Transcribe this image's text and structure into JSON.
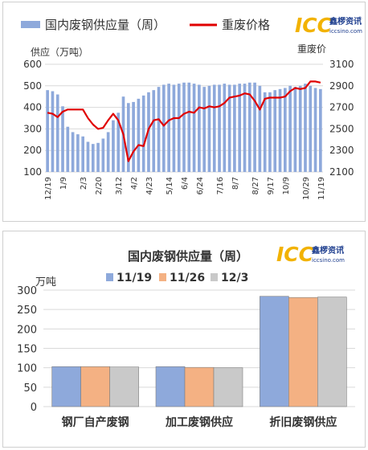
{
  "chart_data": [
    {
      "type": "bar+line",
      "legend": {
        "bar_label": "国内废钢供应量（周）",
        "line_label": "重废价格",
        "placement": "top"
      },
      "y_left_label": "供应（万吨）",
      "y_right_label": "重废价",
      "y_left_ticks": [
        "100",
        "200",
        "300",
        "400",
        "500",
        "600"
      ],
      "y_right_ticks": [
        "2100",
        "2300",
        "2500",
        "2700",
        "2900",
        "3100"
      ],
      "ylim_left": [
        100,
        600
      ],
      "ylim_right": [
        2100,
        3100
      ],
      "x_tick_labels": [
        "12/19",
        "1/9",
        "2/3",
        "2/20",
        "3/12",
        "4/2",
        "4/23",
        "5/14",
        "6/4",
        "6/24",
        "7/16",
        "8/7",
        "8/27",
        "9/17",
        "10/9",
        "10/29",
        "11/19"
      ],
      "supply": [
        480,
        475,
        460,
        405,
        310,
        285,
        275,
        265,
        240,
        230,
        235,
        255,
        285,
        340,
        375,
        450,
        420,
        425,
        440,
        455,
        470,
        480,
        495,
        505,
        510,
        505,
        510,
        515,
        515,
        510,
        505,
        495,
        500,
        505,
        505,
        510,
        505,
        505,
        510,
        510,
        515,
        515,
        500,
        470,
        470,
        480,
        485,
        490,
        500,
        495,
        500,
        510,
        500,
        490,
        485
      ],
      "price": [
        2650,
        2640,
        2610,
        2660,
        2680,
        2680,
        2680,
        2680,
        2600,
        2540,
        2500,
        2510,
        2580,
        2640,
        2580,
        2450,
        2200,
        2290,
        2350,
        2340,
        2500,
        2580,
        2590,
        2530,
        2580,
        2600,
        2600,
        2640,
        2660,
        2650,
        2700,
        2690,
        2710,
        2700,
        2710,
        2740,
        2790,
        2800,
        2810,
        2830,
        2820,
        2760,
        2680,
        2780,
        2790,
        2790,
        2790,
        2800,
        2850,
        2880,
        2870,
        2880,
        2940,
        2940,
        2930
      ],
      "colors": {
        "bar": "#8ea9db",
        "line": "#e00000"
      }
    },
    {
      "type": "bar",
      "title": "国内废钢供应量（周）",
      "ylabel": "万吨",
      "categories": [
        "钢厂自产废钢",
        "加工废钢供应",
        "折旧废钢供应"
      ],
      "y_ticks": [
        "0",
        "50",
        "100",
        "150",
        "200",
        "250",
        "300"
      ],
      "ylim": [
        0,
        300
      ],
      "series": [
        {
          "name": "11/19",
          "values": [
            103,
            103,
            284
          ],
          "color": "#8ea9db"
        },
        {
          "name": "11/26",
          "values": [
            103,
            101,
            281
          ],
          "color": "#f4b183"
        },
        {
          "name": "12/3",
          "values": [
            102,
            100,
            282
          ],
          "color": "#c9c9c9"
        }
      ]
    }
  ],
  "logo": {
    "mark": "ICC",
    "name_cn": "鑫椤资讯",
    "url": "iccsino.com",
    "registered": "®",
    "colors": {
      "mark": "#f2b200",
      "name": "#1f3f8f"
    }
  }
}
